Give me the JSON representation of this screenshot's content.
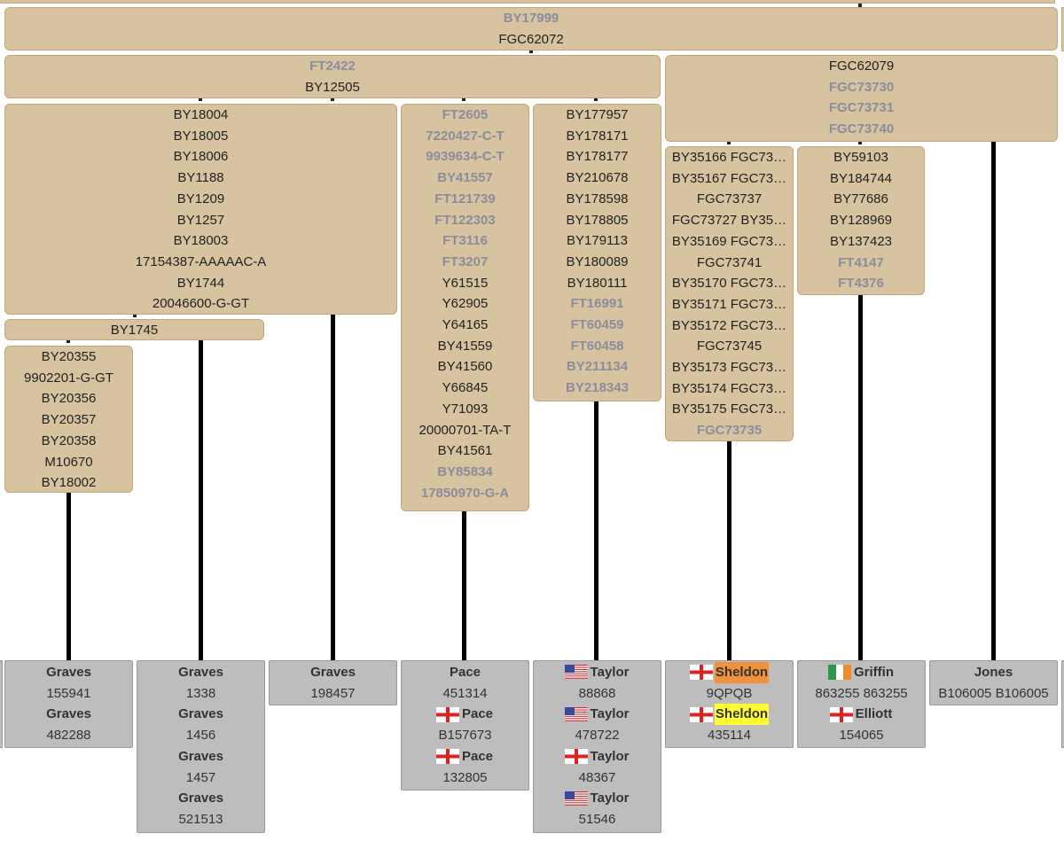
{
  "nodes": [
    {
      "snps": [
        {
          "text": "BY17999",
          "gray": true
        },
        {
          "text": "FGC62072",
          "gray": false
        }
      ]
    },
    {
      "snps": [
        {
          "text": "FT2422",
          "gray": true
        },
        {
          "text": "BY12505",
          "gray": false
        }
      ]
    },
    {
      "snps": [
        {
          "text": "FGC62079",
          "gray": false
        },
        {
          "text": "FGC73730",
          "gray": true
        },
        {
          "text": "FGC73731",
          "gray": true
        },
        {
          "text": "FGC73740",
          "gray": true
        }
      ]
    },
    {
      "snps": [
        {
          "text": "BY18004",
          "gray": false
        },
        {
          "text": "BY18005",
          "gray": false
        },
        {
          "text": "BY18006",
          "gray": false
        },
        {
          "text": "BY1188",
          "gray": false
        },
        {
          "text": "BY1209",
          "gray": false
        },
        {
          "text": "BY1257",
          "gray": false
        },
        {
          "text": "BY18003",
          "gray": false
        },
        {
          "text": "17154387-AAAAAC-A",
          "gray": false
        },
        {
          "text": "BY1744",
          "gray": false
        },
        {
          "text": "20046600-G-GT",
          "gray": false
        }
      ]
    },
    {
      "snps": [
        {
          "text": "FT2605",
          "gray": true
        },
        {
          "text": "7220427-C-T",
          "gray": true
        },
        {
          "text": "9939634-C-T",
          "gray": true
        },
        {
          "text": "BY41557",
          "gray": true
        },
        {
          "text": "FT121739",
          "gray": true
        },
        {
          "text": "FT122303",
          "gray": true
        },
        {
          "text": "FT3116",
          "gray": true
        },
        {
          "text": "FT3207",
          "gray": true
        },
        {
          "text": "Y61515",
          "gray": false
        },
        {
          "text": "Y62905",
          "gray": false
        },
        {
          "text": "Y64165",
          "gray": false
        },
        {
          "text": "BY41559",
          "gray": false
        },
        {
          "text": "BY41560",
          "gray": false
        },
        {
          "text": "Y66845",
          "gray": false
        },
        {
          "text": "Y71093",
          "gray": false
        },
        {
          "text": "20000701-TA-T",
          "gray": false
        },
        {
          "text": "BY41561",
          "gray": false
        },
        {
          "text": "BY85834",
          "gray": true
        },
        {
          "text": "17850970-G-A",
          "gray": true
        }
      ]
    },
    {
      "snps": [
        {
          "text": "BY177957",
          "gray": false
        },
        {
          "text": "BY178171",
          "gray": false
        },
        {
          "text": "BY178177",
          "gray": false
        },
        {
          "text": "BY210678",
          "gray": false
        },
        {
          "text": "BY178598",
          "gray": false
        },
        {
          "text": "BY178805",
          "gray": false
        },
        {
          "text": "BY179113",
          "gray": false
        },
        {
          "text": "BY180089",
          "gray": false
        },
        {
          "text": "BY180111",
          "gray": false
        },
        {
          "text": "FT16991",
          "gray": true
        },
        {
          "text": "FT60459",
          "gray": true
        },
        {
          "text": "FT60458",
          "gray": true
        },
        {
          "text": "BY211134",
          "gray": true
        },
        {
          "text": "BY218343",
          "gray": true
        }
      ]
    },
    {
      "snps": [
        {
          "text": "BY35166 FGC73…",
          "gray": false
        },
        {
          "text": "BY35167 FGC73…",
          "gray": false
        },
        {
          "text": "FGC73737",
          "gray": false
        },
        {
          "text": "FGC73727 BY35…",
          "gray": false
        },
        {
          "text": "BY35169 FGC73…",
          "gray": false
        },
        {
          "text": "FGC73741",
          "gray": false
        },
        {
          "text": "BY35170 FGC73…",
          "gray": false
        },
        {
          "text": "BY35171 FGC73…",
          "gray": false
        },
        {
          "text": "BY35172 FGC73…",
          "gray": false
        },
        {
          "text": "FGC73745",
          "gray": false
        },
        {
          "text": "BY35173 FGC73…",
          "gray": false
        },
        {
          "text": "BY35174 FGC73…",
          "gray": false
        },
        {
          "text": "BY35175 FGC73…",
          "gray": false
        },
        {
          "text": "FGC73735",
          "gray": true
        }
      ]
    },
    {
      "snps": [
        {
          "text": "BY59103",
          "gray": false
        },
        {
          "text": "BY184744",
          "gray": false
        },
        {
          "text": "BY77686",
          "gray": false
        },
        {
          "text": "BY128969",
          "gray": false
        },
        {
          "text": "BY137423",
          "gray": false
        },
        {
          "text": "FT4147",
          "gray": true
        },
        {
          "text": "FT4376",
          "gray": true
        }
      ]
    },
    {
      "snps": [
        {
          "text": "BY1745",
          "gray": false
        }
      ]
    },
    {
      "snps": [
        {
          "text": "BY20355",
          "gray": false
        },
        {
          "text": "9902201-G-GT",
          "gray": false
        },
        {
          "text": "BY20356",
          "gray": false
        },
        {
          "text": "BY20357",
          "gray": false
        },
        {
          "text": "BY20358",
          "gray": false
        },
        {
          "text": "M10670",
          "gray": false
        },
        {
          "text": "BY18002",
          "gray": false
        }
      ]
    }
  ],
  "leaves": [
    {
      "entries": [
        {
          "surname": "Graves",
          "kit": "155941"
        },
        {
          "surname": "Graves",
          "kit": "482288"
        }
      ]
    },
    {
      "entries": [
        {
          "surname": "Graves",
          "kit": "1338"
        },
        {
          "surname": "Graves",
          "kit": "1456"
        },
        {
          "surname": "Graves",
          "kit": "1457"
        },
        {
          "surname": "Graves",
          "kit": "521513"
        }
      ]
    },
    {
      "entries": [
        {
          "surname": "Graves",
          "kit": "198457"
        }
      ]
    },
    {
      "entries": [
        {
          "surname": "Pace",
          "kit": "451314"
        },
        {
          "surname": "Pace",
          "kit": "B157673",
          "flag": "england"
        },
        {
          "surname": "Pace",
          "kit": "132805",
          "flag": "england"
        }
      ]
    },
    {
      "entries": [
        {
          "surname": "Taylor",
          "kit": "88868",
          "flag": "us"
        },
        {
          "surname": "Taylor",
          "kit": "478722",
          "flag": "us"
        },
        {
          "surname": "Taylor",
          "kit": "48367",
          "flag": "england"
        },
        {
          "surname": "Taylor",
          "kit": "51546",
          "flag": "us"
        }
      ]
    },
    {
      "entries": [
        {
          "surname": "Sheldon",
          "kit": "9QPQB",
          "flag": "england",
          "highlight": "#f0923c"
        },
        {
          "surname": "Sheldon",
          "kit": "435114",
          "flag": "england",
          "highlight": "#ffff33"
        }
      ]
    },
    {
      "entries": [
        {
          "surname": "Griffin",
          "kit": "863255 863255",
          "flag": "ireland"
        },
        {
          "surname": "Elliott",
          "kit": "154065",
          "flag": "england"
        }
      ]
    },
    {
      "entries": [
        {
          "surname": "Jones",
          "kit": "B106005 B106005"
        }
      ]
    }
  ]
}
